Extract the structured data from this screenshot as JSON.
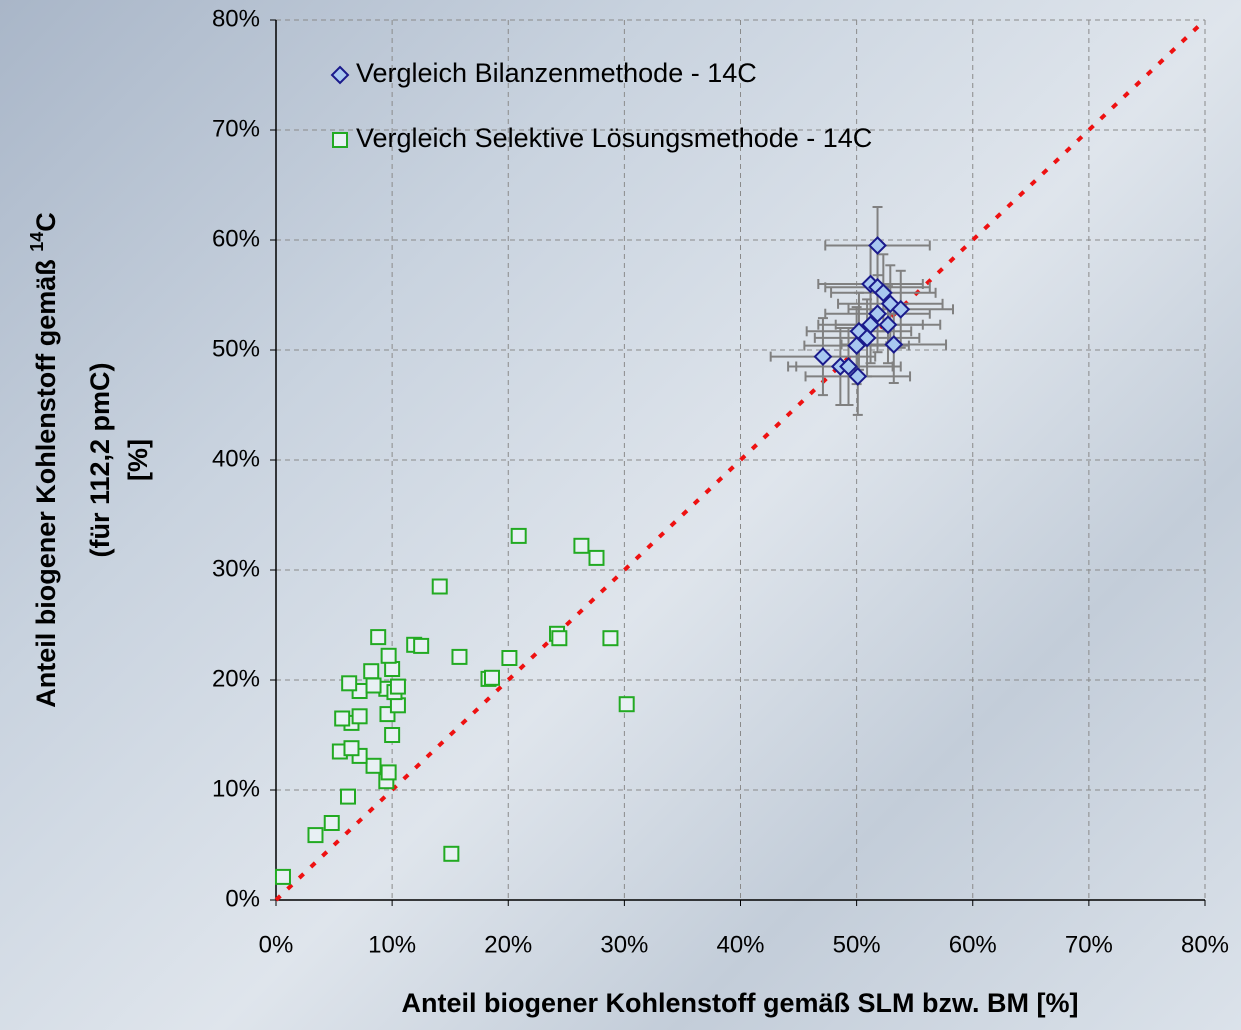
{
  "chart_data": {
    "type": "scatter",
    "xlabel": "Anteil biogener Kohlenstoff gemäß SLM bzw. BM [%]",
    "ylabel": {
      "line1": "Anteil biogener Kohlenstoff gemäß ",
      "sup": "14",
      "after": "C",
      "line2": "(für 112,2 pmC)",
      "line3": "[%]"
    },
    "xlim": [
      0,
      80
    ],
    "ylim": [
      0,
      80
    ],
    "xticks": [
      {
        "value": 0,
        "label": "0%"
      },
      {
        "value": 10,
        "label": "10%"
      },
      {
        "value": 20,
        "label": "20%"
      },
      {
        "value": 30,
        "label": "30%"
      },
      {
        "value": 40,
        "label": "40%"
      },
      {
        "value": 50,
        "label": "50%"
      },
      {
        "value": 60,
        "label": "60%"
      },
      {
        "value": 70,
        "label": "70%"
      },
      {
        "value": 80,
        "label": "80%"
      }
    ],
    "yticks": [
      {
        "value": 0,
        "label": "0%"
      },
      {
        "value": 10,
        "label": "10%"
      },
      {
        "value": 20,
        "label": "20%"
      },
      {
        "value": 30,
        "label": "30%"
      },
      {
        "value": 40,
        "label": "40%"
      },
      {
        "value": 50,
        "label": "50%"
      },
      {
        "value": 60,
        "label": "60%"
      },
      {
        "value": 70,
        "label": "70%"
      },
      {
        "value": 80,
        "label": "80%"
      }
    ],
    "grid": true,
    "legend": "upper left",
    "reference_line": {
      "x": [
        0,
        80
      ],
      "y": [
        0,
        80
      ],
      "color": "#ee1111"
    },
    "series": [
      {
        "name": "Vergleich Bilanzenmethode - 14C",
        "marker": "diamond",
        "color": "#1a1a8c",
        "fill": "#a8c8f0",
        "error_color": "#808080",
        "x": [
          51.8,
          51.2,
          51.8,
          52.3,
          52.9,
          53.8,
          51.8,
          51.2,
          52.7,
          50.2,
          50.9,
          50.0,
          53.2,
          47.1,
          48.6,
          49.3,
          50.1
        ],
        "values": [
          59.5,
          56.0,
          55.7,
          55.2,
          54.2,
          53.7,
          53.3,
          52.3,
          52.3,
          51.7,
          51.1,
          50.4,
          50.5,
          49.4,
          48.5,
          48.5,
          47.6
        ],
        "xerr": [
          4.5,
          4.5,
          4.5,
          4.5,
          4.5,
          4.5,
          4.5,
          4.5,
          4.5,
          4.5,
          4.5,
          4.5,
          4.5,
          4.5,
          4.5,
          4.5,
          4.5
        ],
        "yerr": [
          3.5,
          3.5,
          3.5,
          3.5,
          3.5,
          3.5,
          3.5,
          3.5,
          3.5,
          3.5,
          3.5,
          3.5,
          3.5,
          3.5,
          3.5,
          3.5,
          3.5
        ]
      },
      {
        "name": "Vergleich Selektive Lösungsmethode - 14C",
        "marker": "square",
        "color": "#22aa22",
        "fill": "#e8f0f4",
        "x": [
          0.6,
          3.4,
          4.8,
          6.2,
          9.5,
          9.7,
          8.4,
          7.2,
          5.5,
          6.5,
          10.0,
          6.5,
          7.2,
          5.7,
          9.6,
          10.5,
          30.2,
          7.2,
          9.5,
          10.2,
          10.5,
          8.4,
          6.3,
          18.3,
          18.6,
          10.0,
          8.2,
          9.7,
          15.8,
          20.1,
          11.9,
          12.5,
          8.8,
          24.2,
          24.4,
          28.8,
          14.1,
          27.6,
          26.3,
          20.9,
          15.1
        ],
        "values": [
          2.1,
          5.9,
          7.0,
          9.4,
          10.8,
          11.6,
          12.2,
          13.1,
          13.5,
          13.8,
          15.0,
          16.1,
          16.7,
          16.5,
          16.9,
          17.7,
          17.8,
          19.0,
          19.2,
          18.9,
          19.4,
          19.5,
          19.7,
          20.1,
          20.2,
          21.0,
          20.8,
          22.2,
          22.1,
          22.0,
          23.2,
          23.1,
          23.9,
          24.2,
          23.8,
          23.8,
          28.5,
          31.1,
          32.2,
          33.1,
          4.2
        ]
      }
    ]
  }
}
